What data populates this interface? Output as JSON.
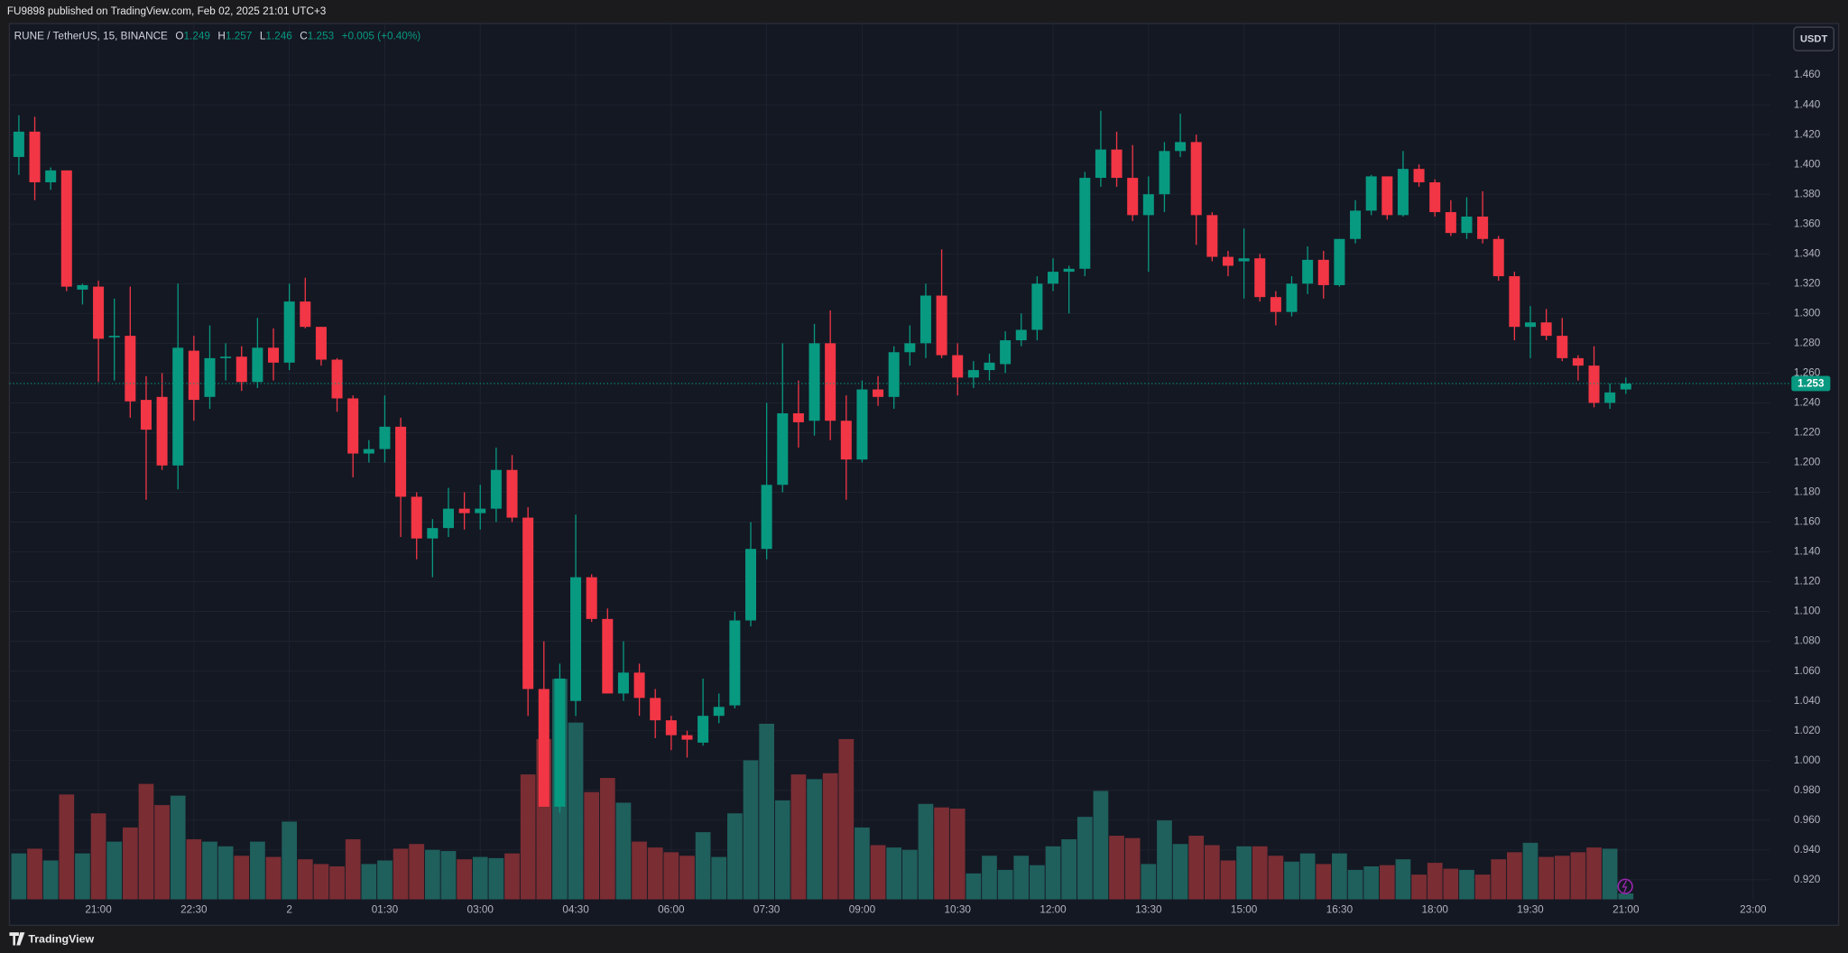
{
  "header": {
    "published": "FU9898 published on TradingView.com, Feb 02, 2025 21:01 UTC+3"
  },
  "footer": {
    "brand": "TradingView"
  },
  "chart_data": {
    "type": "candlestick",
    "legend": {
      "symbol": "RUNE / TetherUS, 15, BINANCE",
      "open_label": "O",
      "open": 1.249,
      "high_label": "H",
      "high": 1.257,
      "low_label": "L",
      "low": 1.246,
      "close_label": "C",
      "close": 1.253,
      "change": "+0.005 (+0.40%)"
    },
    "currency": "USDT",
    "last_price": 1.253,
    "up_color": "#089981",
    "down_color": "#f23645",
    "volume_up_color": "#1f5f5c",
    "volume_down_color": "#7a2d33",
    "grid": true,
    "x": [
      "19:45",
      "20:00",
      "20:15",
      "20:30",
      "20:45",
      "21:00",
      "21:15",
      "21:30",
      "21:45",
      "22:00",
      "22:15",
      "22:30",
      "22:45",
      "23:00",
      "23:15",
      "23:30",
      "23:45",
      "00:00",
      "00:15",
      "00:30",
      "00:45",
      "01:00",
      "01:15",
      "01:30",
      "01:45",
      "02:00",
      "02:15",
      "02:30",
      "02:45",
      "03:00",
      "03:15",
      "03:30",
      "03:45",
      "04:00",
      "04:15",
      "04:30",
      "04:45",
      "05:00",
      "05:15",
      "05:30",
      "05:45",
      "06:00",
      "06:15",
      "06:30",
      "06:45",
      "07:00",
      "07:15",
      "07:30",
      "07:45",
      "08:00",
      "08:15",
      "08:30",
      "08:45",
      "09:00",
      "09:15",
      "09:30",
      "09:45",
      "10:00",
      "10:15",
      "10:30",
      "10:45",
      "11:00",
      "11:15",
      "11:30",
      "11:45",
      "12:00",
      "12:15",
      "12:30",
      "12:45",
      "13:00",
      "13:15",
      "13:30",
      "13:45",
      "14:00",
      "14:15",
      "14:30",
      "14:45",
      "15:00",
      "15:15",
      "15:30",
      "15:45",
      "16:00",
      "16:15",
      "16:30",
      "16:45",
      "17:00",
      "17:15",
      "17:30",
      "17:45",
      "18:00",
      "18:15",
      "18:30",
      "18:45",
      "19:00",
      "19:15",
      "19:30",
      "19:45",
      "20:00",
      "20:15",
      "20:30",
      "20:45",
      "21:00"
    ],
    "open": [
      1.405,
      1.422,
      1.388,
      1.396,
      1.316,
      1.318,
      1.284,
      1.285,
      1.242,
      1.244,
      1.198,
      1.275,
      1.244,
      1.27,
      1.271,
      1.254,
      1.277,
      1.267,
      1.308,
      1.291,
      1.269,
      1.243,
      1.206,
      1.209,
      1.224,
      1.177,
      1.149,
      1.156,
      1.169,
      1.166,
      1.169,
      1.195,
      1.163,
      1.048,
      0.969,
      1.04,
      1.123,
      1.095,
      1.045,
      1.059,
      1.042,
      1.027,
      1.017,
      1.012,
      1.03,
      1.037,
      1.094,
      1.142,
      1.185,
      1.233,
      1.228,
      1.28,
      1.228,
      1.202,
      1.249,
      1.244,
      1.274,
      1.28,
      1.312,
      1.272,
      1.257,
      1.262,
      1.266,
      1.282,
      1.289,
      1.32,
      1.328,
      1.33,
      1.391,
      1.41,
      1.391,
      1.366,
      1.38,
      1.409,
      1.415,
      1.366,
      1.338,
      1.335,
      1.337,
      1.311,
      1.301,
      1.32,
      1.336,
      1.319,
      1.35,
      1.369,
      1.392,
      1.366,
      1.397,
      1.388,
      1.368,
      1.354,
      1.365,
      1.35,
      1.325,
      1.291,
      1.294,
      1.285,
      1.27,
      1.265,
      1.24,
      1.249
    ],
    "high": [
      1.433,
      1.432,
      1.398,
      1.396,
      1.32,
      1.322,
      1.31,
      1.318,
      1.258,
      1.26,
      1.32,
      1.285,
      1.292,
      1.28,
      1.278,
      1.297,
      1.29,
      1.32,
      1.324,
      1.291,
      1.27,
      1.245,
      1.215,
      1.245,
      1.23,
      1.18,
      1.162,
      1.183,
      1.18,
      1.185,
      1.21,
      1.205,
      1.17,
      1.08,
      1.065,
      1.165,
      1.125,
      1.102,
      1.08,
      1.065,
      1.048,
      1.03,
      1.02,
      1.055,
      1.045,
      1.1,
      1.16,
      1.24,
      1.28,
      1.255,
      1.293,
      1.302,
      1.245,
      1.255,
      1.258,
      1.278,
      1.292,
      1.32,
      1.343,
      1.28,
      1.268,
      1.273,
      1.288,
      1.3,
      1.325,
      1.337,
      1.332,
      1.395,
      1.436,
      1.422,
      1.413,
      1.392,
      1.415,
      1.434,
      1.42,
      1.368,
      1.342,
      1.357,
      1.34,
      1.315,
      1.325,
      1.345,
      1.342,
      1.35,
      1.376,
      1.393,
      1.392,
      1.409,
      1.4,
      1.39,
      1.376,
      1.378,
      1.382,
      1.352,
      1.328,
      1.305,
      1.303,
      1.297,
      1.272,
      1.278,
      1.253,
      1.257
    ],
    "low": [
      1.393,
      1.376,
      1.383,
      1.315,
      1.306,
      1.254,
      1.255,
      1.23,
      1.175,
      1.195,
      1.182,
      1.228,
      1.236,
      1.255,
      1.248,
      1.25,
      1.255,
      1.262,
      1.29,
      1.265,
      1.234,
      1.19,
      1.2,
      1.2,
      1.15,
      1.135,
      1.123,
      1.15,
      1.155,
      1.155,
      1.16,
      1.16,
      1.03,
      0.969,
      0.965,
      1.03,
      1.093,
      1.045,
      1.04,
      1.03,
      1.015,
      1.007,
      1.002,
      1.01,
      1.025,
      1.035,
      1.09,
      1.135,
      1.18,
      1.21,
      1.218,
      1.215,
      1.175,
      1.2,
      1.238,
      1.236,
      1.265,
      1.27,
      1.27,
      1.245,
      1.25,
      1.255,
      1.26,
      1.278,
      1.282,
      1.315,
      1.3,
      1.325,
      1.385,
      1.385,
      1.362,
      1.328,
      1.368,
      1.405,
      1.346,
      1.335,
      1.325,
      1.31,
      1.308,
      1.292,
      1.298,
      1.313,
      1.31,
      1.318,
      1.347,
      1.366,
      1.363,
      1.365,
      1.385,
      1.365,
      1.352,
      1.35,
      1.347,
      1.322,
      1.282,
      1.27,
      1.282,
      1.268,
      1.255,
      1.237,
      1.236,
      1.246
    ],
    "close": [
      1.422,
      1.388,
      1.396,
      1.318,
      1.319,
      1.283,
      1.285,
      1.241,
      1.222,
      1.198,
      1.277,
      1.242,
      1.27,
      1.271,
      1.254,
      1.277,
      1.267,
      1.308,
      1.291,
      1.269,
      1.243,
      1.206,
      1.209,
      1.224,
      1.177,
      1.149,
      1.156,
      1.169,
      1.166,
      1.169,
      1.195,
      1.163,
      1.048,
      0.969,
      1.055,
      1.123,
      1.095,
      1.045,
      1.059,
      1.042,
      1.027,
      1.017,
      1.014,
      1.03,
      1.036,
      1.094,
      1.142,
      1.185,
      1.233,
      1.227,
      1.28,
      1.228,
      1.202,
      1.249,
      1.244,
      1.274,
      1.28,
      1.312,
      1.272,
      1.257,
      1.262,
      1.267,
      1.282,
      1.289,
      1.32,
      1.328,
      1.33,
      1.391,
      1.41,
      1.391,
      1.366,
      1.38,
      1.409,
      1.415,
      1.366,
      1.338,
      1.332,
      1.337,
      1.311,
      1.301,
      1.32,
      1.336,
      1.319,
      1.35,
      1.369,
      1.392,
      1.366,
      1.397,
      1.388,
      1.368,
      1.354,
      1.365,
      1.35,
      1.325,
      1.291,
      1.294,
      1.285,
      1.27,
      1.265,
      1.24,
      1.247,
      1.253
    ],
    "volume": [
      39,
      43,
      33,
      89,
      39,
      73,
      49,
      61,
      98,
      80,
      88,
      51,
      49,
      45,
      37,
      49,
      36,
      66,
      34,
      30,
      28,
      51,
      30,
      33,
      43,
      47,
      42,
      41,
      34,
      36,
      35,
      39,
      106,
      136,
      187,
      150,
      91,
      103,
      82,
      49,
      44,
      40,
      37,
      57,
      36,
      73,
      118,
      149,
      84,
      106,
      102,
      107,
      136,
      61,
      46,
      44,
      42,
      81,
      78,
      77,
      22,
      37,
      25,
      37,
      29,
      45,
      51,
      70,
      92,
      54,
      52,
      30,
      67,
      47,
      54,
      46,
      33,
      45,
      45,
      37,
      32,
      39,
      30,
      39,
      25,
      28,
      29,
      34,
      21,
      31,
      26,
      25,
      21,
      34,
      40,
      48,
      36,
      37,
      40,
      44,
      43,
      5
    ],
    "ylim": [
      0.91,
      1.47
    ],
    "yticks": [
      {
        "value": 0.92,
        "label": "0.920"
      },
      {
        "value": 0.94,
        "label": "0.940"
      },
      {
        "value": 0.96,
        "label": "0.960"
      },
      {
        "value": 0.98,
        "label": "0.980"
      },
      {
        "value": 1.0,
        "label": "1.000"
      },
      {
        "value": 1.02,
        "label": "1.020"
      },
      {
        "value": 1.04,
        "label": "1.040"
      },
      {
        "value": 1.06,
        "label": "1.060"
      },
      {
        "value": 1.08,
        "label": "1.080"
      },
      {
        "value": 1.1,
        "label": "1.100"
      },
      {
        "value": 1.12,
        "label": "1.120"
      },
      {
        "value": 1.14,
        "label": "1.140"
      },
      {
        "value": 1.16,
        "label": "1.160"
      },
      {
        "value": 1.18,
        "label": "1.180"
      },
      {
        "value": 1.2,
        "label": "1.200"
      },
      {
        "value": 1.22,
        "label": "1.220"
      },
      {
        "value": 1.24,
        "label": "1.240"
      },
      {
        "value": 1.26,
        "label": "1.260"
      },
      {
        "value": 1.28,
        "label": "1.280"
      },
      {
        "value": 1.3,
        "label": "1.300"
      },
      {
        "value": 1.32,
        "label": "1.320"
      },
      {
        "value": 1.34,
        "label": "1.340"
      },
      {
        "value": 1.36,
        "label": "1.360"
      },
      {
        "value": 1.38,
        "label": "1.380"
      },
      {
        "value": 1.4,
        "label": "1.400"
      },
      {
        "value": 1.42,
        "label": "1.420"
      },
      {
        "value": 1.44,
        "label": "1.440"
      },
      {
        "value": 1.46,
        "label": "1.460"
      }
    ],
    "xticks": [
      "21:00",
      "22:30",
      {
        "value": "00:00",
        "label": "2"
      },
      "01:30",
      "03:00",
      "04:30",
      "06:00",
      "07:30",
      "09:00",
      "10:30",
      "12:00",
      "13:30",
      "15:00",
      "16:30",
      "18:00",
      "19:30",
      "21:00",
      "23:00"
    ]
  }
}
